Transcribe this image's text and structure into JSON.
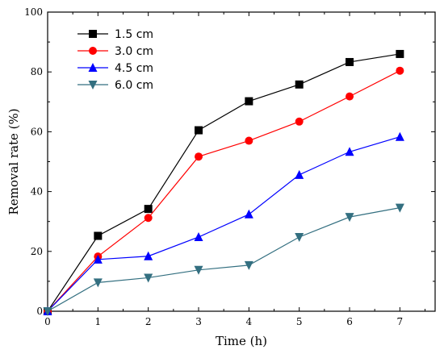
{
  "chart_data": {
    "type": "line",
    "title": "",
    "xlabel": "Time (h)",
    "ylabel": "Removal rate (%)",
    "xlim": [
      0,
      7.7
    ],
    "ylim": [
      0,
      100
    ],
    "xticks": [
      "0",
      "1",
      "2",
      "3",
      "4",
      "5",
      "6",
      "7"
    ],
    "yticks": [
      "0",
      "20",
      "40",
      "60",
      "80",
      "100"
    ],
    "grid": false,
    "legend_position": "top-left",
    "x": [
      0,
      1,
      2,
      3,
      4,
      5,
      6,
      7
    ],
    "series": [
      {
        "name": "1.5 cm",
        "values": [
          0,
          25.2,
          34.2,
          60.5,
          70.2,
          75.8,
          83.3,
          86.0
        ],
        "color": "#000000",
        "marker": "square"
      },
      {
        "name": "3.0 cm",
        "values": [
          0,
          18.3,
          31.2,
          51.7,
          57.0,
          63.4,
          71.8,
          80.4
        ],
        "color": "#ff0000",
        "marker": "circle"
      },
      {
        "name": "4.5 cm",
        "values": [
          0,
          17.3,
          18.4,
          24.8,
          32.4,
          45.6,
          53.3,
          58.3
        ],
        "color": "#0000ff",
        "marker": "triangle-up"
      },
      {
        "name": "6.0 cm",
        "values": [
          0,
          9.6,
          11.2,
          13.8,
          15.4,
          24.8,
          31.5,
          34.6
        ],
        "color": "#336f80",
        "marker": "triangle-down"
      }
    ]
  }
}
